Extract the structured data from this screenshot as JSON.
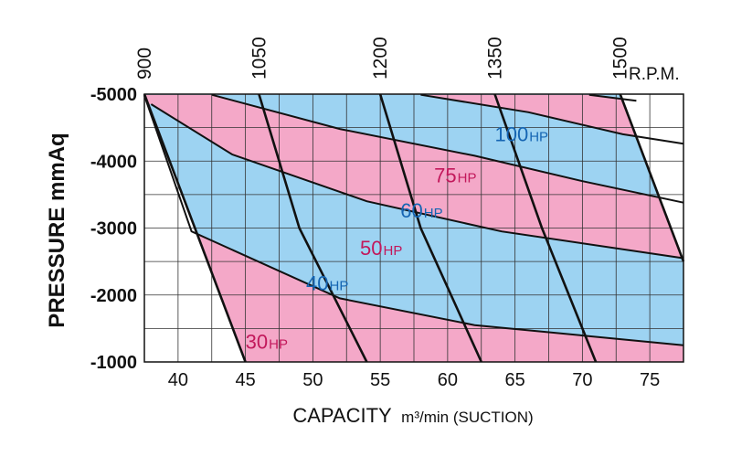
{
  "chart_data": {
    "type": "area",
    "xlabel_main": "CAPACITY",
    "xlabel_unit": "m³/min (SUCTION)",
    "ylabel": "PRESSURE  mmAq",
    "rpm_label": "R.P.M.",
    "xlim": [
      37.5,
      77.5
    ],
    "ylim": [
      -5000,
      -1000
    ],
    "x_ticks": [
      "40",
      "45",
      "50",
      "55",
      "60",
      "65",
      "70",
      "75"
    ],
    "y_ticks": [
      "-5000",
      "-4000",
      "-3000",
      "-2000",
      "-1000"
    ],
    "grid": true,
    "colors": {
      "band_a": "#f4a8c8",
      "band_b": "#9dd3f2",
      "grid": "#333333",
      "curve": "#111111",
      "hp_blue": "#1565b3",
      "hp_pink": "#c2185b"
    },
    "power_lines": [
      {
        "name": "30HP_lower",
        "points": [
          [
            37.5,
            -5000
          ],
          [
            45.0,
            -1000
          ]
        ]
      },
      {
        "name": "30HP",
        "points": [
          [
            37.5,
            -4980
          ],
          [
            41.0,
            -2950
          ],
          [
            52.0,
            -1950
          ],
          [
            62.0,
            -1550
          ],
          [
            77.5,
            -1250
          ]
        ]
      },
      {
        "name": "40HP",
        "points": [
          [
            38.0,
            -4850
          ],
          [
            44.0,
            -4100
          ],
          [
            54.0,
            -3400
          ],
          [
            64.0,
            -2950
          ],
          [
            77.5,
            -2550
          ]
        ]
      },
      {
        "name": "50HP",
        "points": [
          [
            42.5,
            -4990
          ],
          [
            52.0,
            -4480
          ],
          [
            62.0,
            -4080
          ],
          [
            70.0,
            -3700
          ],
          [
            77.5,
            -3380
          ]
        ]
      },
      {
        "name": "60HP",
        "points": [
          [
            58.0,
            -4990
          ],
          [
            66.0,
            -4730
          ],
          [
            73.0,
            -4400
          ],
          [
            77.5,
            -4260
          ]
        ]
      },
      {
        "name": "75HP",
        "points": [
          [
            70.5,
            -4990
          ],
          [
            74.0,
            -4900
          ]
        ]
      },
      {
        "name": "100HP_upper",
        "points": [
          [
            72.8,
            -5000
          ],
          [
            77.5,
            -2500
          ]
        ]
      }
    ],
    "band_order": [
      "band_a",
      "band_b",
      "band_a",
      "band_b",
      "band_a",
      "band_b",
      "band_a"
    ],
    "rpm_curves": [
      {
        "rpm": "900",
        "points": [
          [
            37.5,
            -5000
          ],
          [
            45.0,
            -1000
          ]
        ]
      },
      {
        "rpm": "1050",
        "points": [
          [
            46.0,
            -5000
          ],
          [
            49.0,
            -3000
          ],
          [
            54.0,
            -1000
          ]
        ]
      },
      {
        "rpm": "1200",
        "points": [
          [
            55.0,
            -5000
          ],
          [
            58.0,
            -3000
          ],
          [
            62.5,
            -1000
          ]
        ]
      },
      {
        "rpm": "1350",
        "points": [
          [
            63.5,
            -5000
          ],
          [
            67.0,
            -3000
          ],
          [
            71.0,
            -1000
          ]
        ]
      },
      {
        "rpm": "1500",
        "points": [
          [
            72.8,
            -5000
          ],
          [
            77.5,
            -2500
          ]
        ]
      }
    ],
    "rpm_tick_labels": [
      {
        "text": "900",
        "x": 37.5
      },
      {
        "text": "1050",
        "x": 46.0
      },
      {
        "text": "1200",
        "x": 55.0
      },
      {
        "text": "1350",
        "x": 63.5
      },
      {
        "text": "1500",
        "x": 72.8
      }
    ],
    "hp_labels": [
      {
        "num": "100",
        "unit": "HP",
        "x": 63.5,
        "y": -4300,
        "color": "hp_blue"
      },
      {
        "num": "75",
        "unit": "HP",
        "x": 59.0,
        "y": -3680,
        "color": "hp_pink"
      },
      {
        "num": "60",
        "unit": "HP",
        "x": 56.5,
        "y": -3160,
        "color": "hp_blue"
      },
      {
        "num": "50",
        "unit": "HP",
        "x": 53.5,
        "y": -2600,
        "color": "hp_pink"
      },
      {
        "num": "40",
        "unit": "HP",
        "x": 49.5,
        "y": -2070,
        "color": "hp_blue"
      },
      {
        "num": "30",
        "unit": "HP",
        "x": 45.0,
        "y": -1200,
        "color": "hp_pink"
      }
    ]
  }
}
